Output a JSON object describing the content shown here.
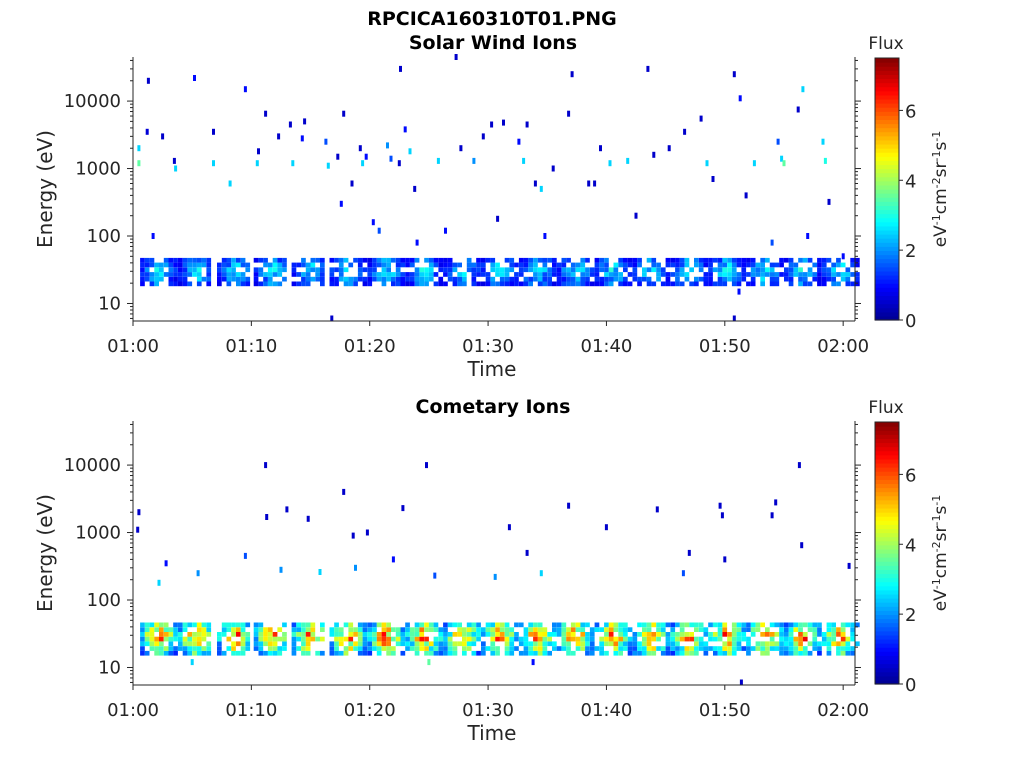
{
  "figure": {
    "title": "RPCICA160310T01.PNG",
    "colormap": [
      "#00008f",
      "#0000ff",
      "#0080ff",
      "#00ffff",
      "#80ff80",
      "#ffff00",
      "#ff8000",
      "#ff0000",
      "#800000"
    ]
  },
  "chart_data": [
    {
      "type": "heatmap",
      "title": "Solar Wind Ions",
      "xlabel": "Time",
      "ylabel": "Energy (eV)",
      "x_ticks": [
        "01:00",
        "01:10",
        "01:20",
        "01:30",
        "01:40",
        "01:50",
        "02:00"
      ],
      "xlim_minutes": [
        0,
        61
      ],
      "y_scale": "log",
      "y_ticks": [
        "10",
        "100",
        "1000",
        "10000"
      ],
      "ylim": [
        5.5,
        45000
      ],
      "colorbar": {
        "title": "Flux",
        "unit_label": "eV-1cm-2sr-1s-1",
        "ticks": [
          "0",
          "2",
          "4",
          "6"
        ],
        "range": [
          0,
          7.5
        ]
      },
      "band": {
        "center_times_min": [
          2.0,
          5.2,
          8.5,
          11.6,
          14.8,
          18.0,
          21.2,
          24.4,
          27.6,
          30.8,
          34.0,
          37.2,
          40.4,
          43.6,
          46.8,
          50.0,
          53.2,
          56.4,
          59.6
        ],
        "energy_range": [
          18,
          42
        ],
        "peak_flux": 3.2
      },
      "scatter": [
        {
          "t": 0.5,
          "e": 2000,
          "f": 2.5
        },
        {
          "t": 0.5,
          "e": 1200,
          "f": 3.5
        },
        {
          "t": 1.3,
          "e": 20000,
          "f": 0.5
        },
        {
          "t": 1.2,
          "e": 3500,
          "f": 0.6
        },
        {
          "t": 1.7,
          "e": 100,
          "f": 1.0
        },
        {
          "t": 2.5,
          "e": 3000,
          "f": 0.5
        },
        {
          "t": 3.5,
          "e": 1300,
          "f": 0.5
        },
        {
          "t": 3.6,
          "e": 1000,
          "f": 2.5
        },
        {
          "t": 5.2,
          "e": 22000,
          "f": 1.0
        },
        {
          "t": 6.8,
          "e": 3500,
          "f": 0.5
        },
        {
          "t": 6.8,
          "e": 1200,
          "f": 2.5
        },
        {
          "t": 8.2,
          "e": 600,
          "f": 2.5
        },
        {
          "t": 9.5,
          "e": 15000,
          "f": 1.0
        },
        {
          "t": 10.6,
          "e": 1800,
          "f": 0.5
        },
        {
          "t": 10.5,
          "e": 1200,
          "f": 2.5
        },
        {
          "t": 11.2,
          "e": 6500,
          "f": 0.5
        },
        {
          "t": 12.3,
          "e": 3000,
          "f": 0.5
        },
        {
          "t": 13.3,
          "e": 4500,
          "f": 0.5
        },
        {
          "t": 13.5,
          "e": 1200,
          "f": 2.5
        },
        {
          "t": 14.3,
          "e": 2800,
          "f": 1.0
        },
        {
          "t": 14.5,
          "e": 5000,
          "f": 0.5
        },
        {
          "t": 16.3,
          "e": 2500,
          "f": 1.5
        },
        {
          "t": 16.5,
          "e": 1100,
          "f": 2.5
        },
        {
          "t": 17.3,
          "e": 1500,
          "f": 0.5
        },
        {
          "t": 17.6,
          "e": 300,
          "f": 1.0
        },
        {
          "t": 17.8,
          "e": 6500,
          "f": 0.5
        },
        {
          "t": 18.5,
          "e": 600,
          "f": 0.5
        },
        {
          "t": 19.2,
          "e": 2000,
          "f": 0.5
        },
        {
          "t": 19.4,
          "e": 1200,
          "f": 2.5
        },
        {
          "t": 19.7,
          "e": 1500,
          "f": 1.0
        },
        {
          "t": 20.3,
          "e": 160,
          "f": 1.0
        },
        {
          "t": 20.8,
          "e": 120,
          "f": 1.5
        },
        {
          "t": 21.5,
          "e": 2200,
          "f": 2.0
        },
        {
          "t": 21.8,
          "e": 1400,
          "f": 1.5
        },
        {
          "t": 22.6,
          "e": 30000,
          "f": 0.5
        },
        {
          "t": 22.5,
          "e": 1200,
          "f": 0.5
        },
        {
          "t": 23.0,
          "e": 3800,
          "f": 1.0
        },
        {
          "t": 23.4,
          "e": 1800,
          "f": 2.5
        },
        {
          "t": 23.8,
          "e": 500,
          "f": 0.5
        },
        {
          "t": 24.0,
          "e": 80,
          "f": 1.0
        },
        {
          "t": 25.8,
          "e": 1300,
          "f": 2.5
        },
        {
          "t": 26.4,
          "e": 120,
          "f": 1.0
        },
        {
          "t": 27.3,
          "e": 45000,
          "f": 0.5
        },
        {
          "t": 27.7,
          "e": 2000,
          "f": 0.5
        },
        {
          "t": 28.8,
          "e": 1300,
          "f": 2.0
        },
        {
          "t": 29.6,
          "e": 3000,
          "f": 0.5
        },
        {
          "t": 30.3,
          "e": 4500,
          "f": 0.5
        },
        {
          "t": 30.8,
          "e": 180,
          "f": 0.5
        },
        {
          "t": 31.3,
          "e": 4800,
          "f": 0.5
        },
        {
          "t": 32.6,
          "e": 2500,
          "f": 1.0
        },
        {
          "t": 33.0,
          "e": 1300,
          "f": 2.5
        },
        {
          "t": 33.3,
          "e": 4500,
          "f": 0.5
        },
        {
          "t": 34.0,
          "e": 600,
          "f": 0.5
        },
        {
          "t": 34.5,
          "e": 500,
          "f": 2.5
        },
        {
          "t": 34.8,
          "e": 100,
          "f": 1.0
        },
        {
          "t": 35.5,
          "e": 1000,
          "f": 0.5
        },
        {
          "t": 36.8,
          "e": 6500,
          "f": 0.5
        },
        {
          "t": 37.1,
          "e": 25000,
          "f": 0.5
        },
        {
          "t": 38.5,
          "e": 600,
          "f": 0.5
        },
        {
          "t": 39.0,
          "e": 600,
          "f": 0.5
        },
        {
          "t": 39.5,
          "e": 2000,
          "f": 0.5
        },
        {
          "t": 40.3,
          "e": 1200,
          "f": 2.5
        },
        {
          "t": 41.8,
          "e": 1300,
          "f": 2.5
        },
        {
          "t": 42.5,
          "e": 200,
          "f": 0.5
        },
        {
          "t": 43.5,
          "e": 30000,
          "f": 0.5
        },
        {
          "t": 44.0,
          "e": 1600,
          "f": 0.5
        },
        {
          "t": 45.3,
          "e": 2000,
          "f": 0.5
        },
        {
          "t": 46.6,
          "e": 3500,
          "f": 0.5
        },
        {
          "t": 48.0,
          "e": 5500,
          "f": 0.5
        },
        {
          "t": 48.5,
          "e": 1200,
          "f": 2.5
        },
        {
          "t": 49.0,
          "e": 700,
          "f": 0.5
        },
        {
          "t": 50.8,
          "e": 25000,
          "f": 0.5
        },
        {
          "t": 51.3,
          "e": 11000,
          "f": 1.0
        },
        {
          "t": 51.8,
          "e": 400,
          "f": 0.5
        },
        {
          "t": 52.5,
          "e": 1200,
          "f": 2.5
        },
        {
          "t": 54.0,
          "e": 80,
          "f": 1.5
        },
        {
          "t": 54.5,
          "e": 2500,
          "f": 1.5
        },
        {
          "t": 54.8,
          "e": 1400,
          "f": 2.5
        },
        {
          "t": 55.0,
          "e": 1200,
          "f": 3.5
        },
        {
          "t": 56.2,
          "e": 7500,
          "f": 0.5
        },
        {
          "t": 56.6,
          "e": 15000,
          "f": 2.5
        },
        {
          "t": 57.0,
          "e": 100,
          "f": 1.0
        },
        {
          "t": 58.3,
          "e": 2500,
          "f": 2.5
        },
        {
          "t": 58.5,
          "e": 1300,
          "f": 3.0
        },
        {
          "t": 58.8,
          "e": 320,
          "f": 0.5
        },
        {
          "t": 60.0,
          "e": 50,
          "f": 1.0
        },
        {
          "t": 51.2,
          "e": 15,
          "f": 1.0
        },
        {
          "t": 50.8,
          "e": 6,
          "f": 0.5
        },
        {
          "t": 16.8,
          "e": 6,
          "f": 0.5
        }
      ]
    },
    {
      "type": "heatmap",
      "title": "Cometary Ions",
      "xlabel": "Time",
      "ylabel": "Energy (eV)",
      "x_ticks": [
        "01:00",
        "01:10",
        "01:20",
        "01:30",
        "01:40",
        "01:50",
        "02:00"
      ],
      "xlim_minutes": [
        0,
        61
      ],
      "y_scale": "log",
      "y_ticks": [
        "10",
        "100",
        "1000",
        "10000"
      ],
      "ylim": [
        5.5,
        45000
      ],
      "colorbar": {
        "title": "Flux",
        "unit_label": "eV-1cm-2sr-1s-1",
        "ticks": [
          "0",
          "2",
          "4",
          "6"
        ],
        "range": [
          0,
          7.5
        ]
      },
      "band": {
        "center_times_min": [
          2.0,
          5.2,
          8.5,
          11.6,
          14.8,
          18.0,
          21.2,
          24.4,
          27.6,
          30.8,
          34.0,
          37.2,
          40.4,
          43.6,
          46.8,
          50.0,
          53.2,
          56.4,
          59.6
        ],
        "energy_range": [
          15,
          45
        ],
        "peak_flux": 6.8
      },
      "scatter": [
        {
          "t": 0.5,
          "e": 2000,
          "f": 0.5
        },
        {
          "t": 0.4,
          "e": 1100,
          "f": 0.5
        },
        {
          "t": 11.2,
          "e": 10000,
          "f": 0.5
        },
        {
          "t": 11.3,
          "e": 1700,
          "f": 0.5
        },
        {
          "t": 13.0,
          "e": 2200,
          "f": 0.5
        },
        {
          "t": 14.8,
          "e": 1600,
          "f": 0.5
        },
        {
          "t": 17.8,
          "e": 4000,
          "f": 0.5
        },
        {
          "t": 18.6,
          "e": 900,
          "f": 0.5
        },
        {
          "t": 19.8,
          "e": 1000,
          "f": 0.5
        },
        {
          "t": 22.8,
          "e": 2300,
          "f": 0.5
        },
        {
          "t": 24.8,
          "e": 10000,
          "f": 0.5
        },
        {
          "t": 31.8,
          "e": 1200,
          "f": 0.5
        },
        {
          "t": 33.3,
          "e": 500,
          "f": 0.5
        },
        {
          "t": 36.8,
          "e": 2500,
          "f": 0.5
        },
        {
          "t": 40.0,
          "e": 1200,
          "f": 0.5
        },
        {
          "t": 44.3,
          "e": 2200,
          "f": 0.5
        },
        {
          "t": 47.0,
          "e": 500,
          "f": 0.5
        },
        {
          "t": 49.6,
          "e": 2500,
          "f": 0.5
        },
        {
          "t": 49.8,
          "e": 1800,
          "f": 0.5
        },
        {
          "t": 50.0,
          "e": 400,
          "f": 0.5
        },
        {
          "t": 54.3,
          "e": 2800,
          "f": 0.5
        },
        {
          "t": 54.0,
          "e": 1800,
          "f": 0.5
        },
        {
          "t": 56.3,
          "e": 10000,
          "f": 0.5
        },
        {
          "t": 56.5,
          "e": 650,
          "f": 0.5
        },
        {
          "t": 60.5,
          "e": 320,
          "f": 0.5
        },
        {
          "t": 2.8,
          "e": 350,
          "f": 1.0
        },
        {
          "t": 2.2,
          "e": 180,
          "f": 2.5
        },
        {
          "t": 5.5,
          "e": 250,
          "f": 2.0
        },
        {
          "t": 9.5,
          "e": 450,
          "f": 1.5
        },
        {
          "t": 12.5,
          "e": 280,
          "f": 2.0
        },
        {
          "t": 15.8,
          "e": 260,
          "f": 2.5
        },
        {
          "t": 18.8,
          "e": 300,
          "f": 2.0
        },
        {
          "t": 22.0,
          "e": 400,
          "f": 1.0
        },
        {
          "t": 25.5,
          "e": 230,
          "f": 1.5
        },
        {
          "t": 30.6,
          "e": 220,
          "f": 2.0
        },
        {
          "t": 34.5,
          "e": 250,
          "f": 2.5
        },
        {
          "t": 46.5,
          "e": 250,
          "f": 1.5
        },
        {
          "t": 51.4,
          "e": 6,
          "f": 0.5
        },
        {
          "t": 25.0,
          "e": 12,
          "f": 3.5
        },
        {
          "t": 33.8,
          "e": 12,
          "f": 1.0
        },
        {
          "t": 5.0,
          "e": 12,
          "f": 2.5
        }
      ]
    }
  ]
}
